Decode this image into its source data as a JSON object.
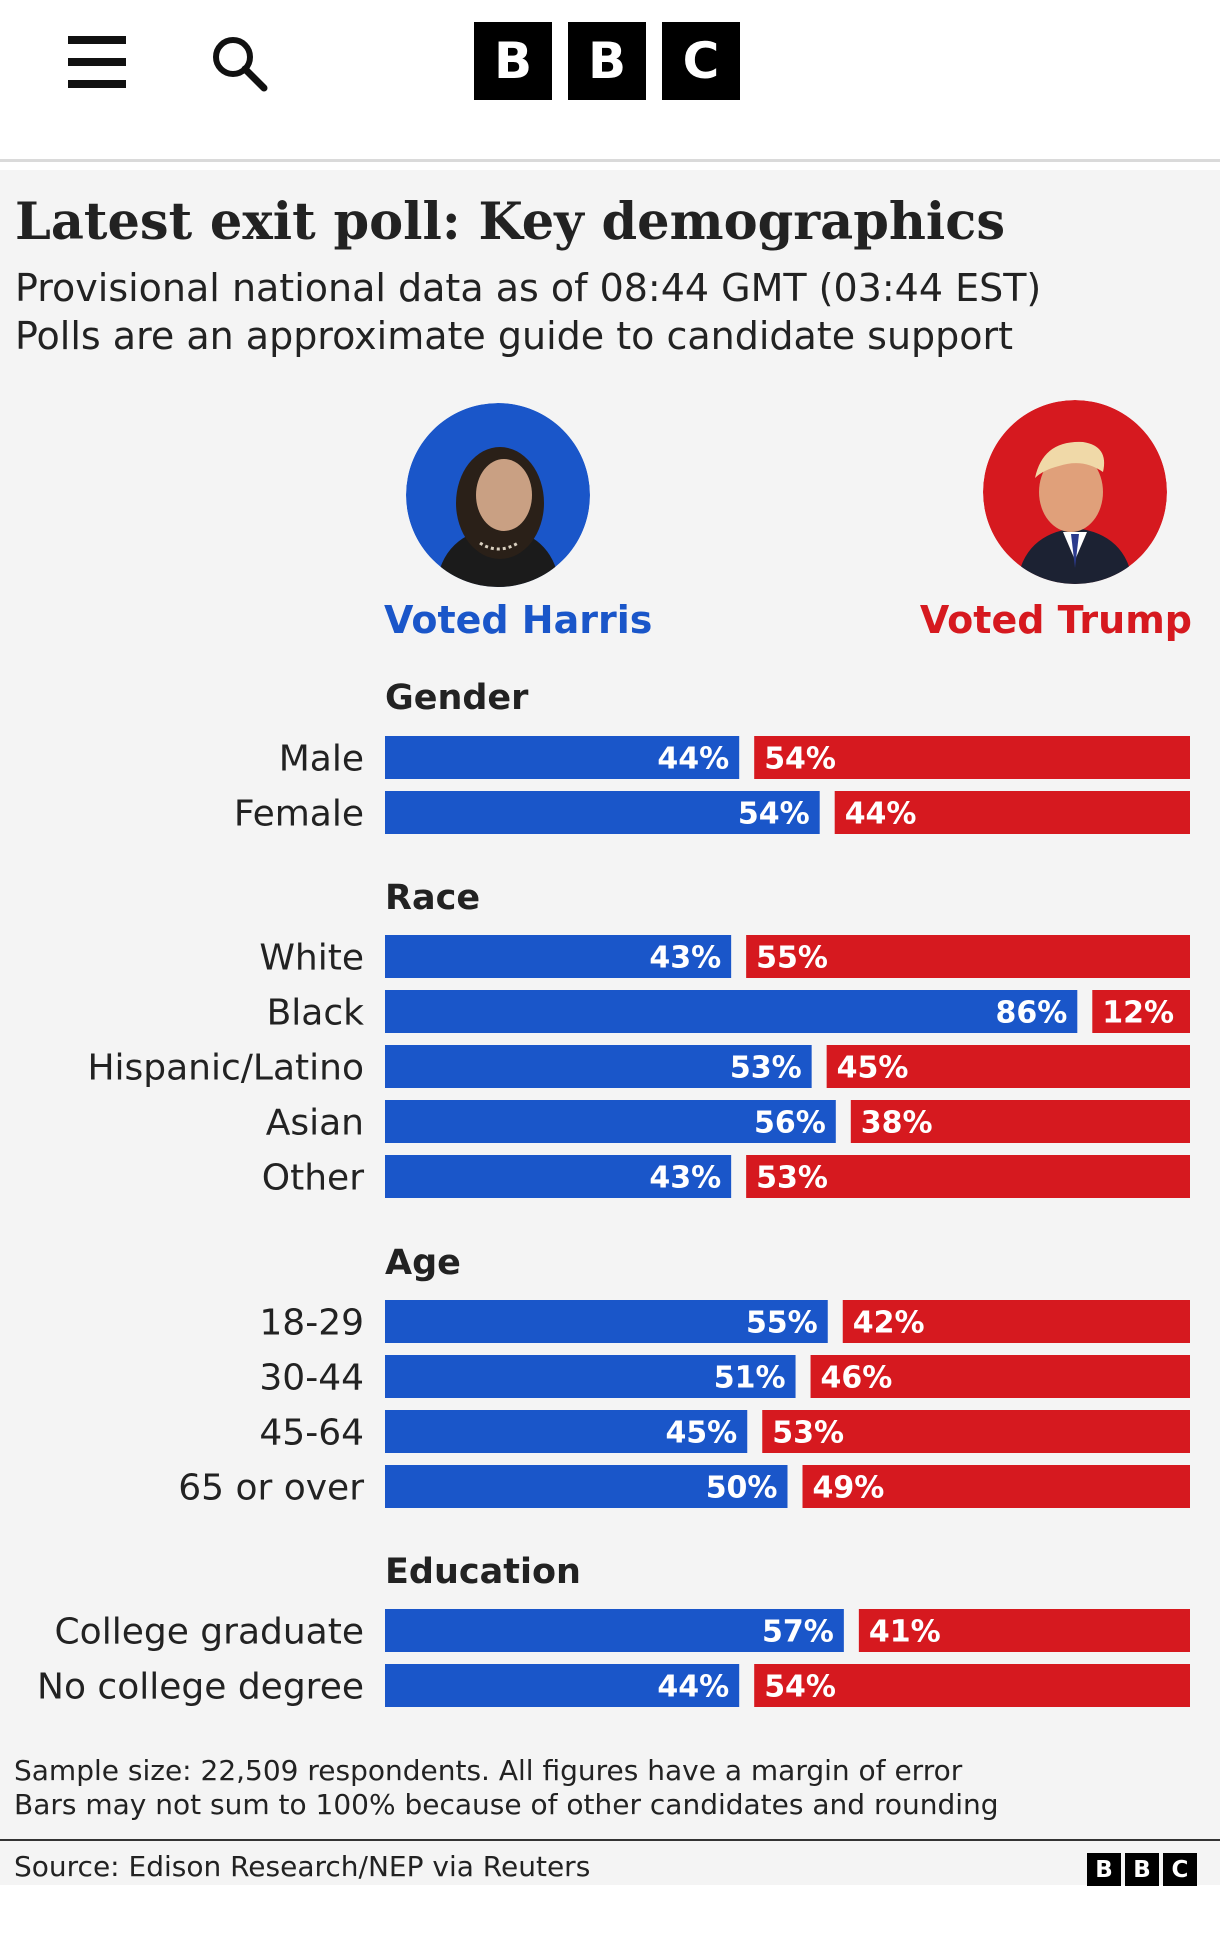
{
  "nav": {
    "menu_icon": "hamburger-menu-icon",
    "search_icon": "search-icon",
    "logo_letters": [
      "B",
      "B",
      "C"
    ]
  },
  "graphic": {
    "title": "Latest exit poll: Key demographics",
    "subtitle_line1": "Provisional national data as of 08:44 GMT (03:44 EST)",
    "subtitle_line2": "Polls are an approximate guide to candidate support",
    "harris_label": "Voted Harris",
    "trump_label": "Voted Trump",
    "colors": {
      "harris": "#1a56c9",
      "trump": "#d6191f",
      "panel_background": "#f4f4f4",
      "label_text": "#222222"
    },
    "footnote_line1": "Sample size: 22,509 respondents. All figures have a margin of error",
    "footnote_line2": "Bars may not sum to 100% because of other candidates and rounding",
    "source": "Source: Edison Research/NEP via Reuters",
    "footer_logo_letters": [
      "B",
      "B",
      "C"
    ]
  },
  "chart_data": {
    "type": "bar",
    "orientation": "horizontal-split",
    "series_names": [
      "Voted Harris",
      "Voted Trump"
    ],
    "unit": "%",
    "groups": [
      {
        "name": "Gender",
        "rows": [
          {
            "label": "Male",
            "harris": 44,
            "trump": 54
          },
          {
            "label": "Female",
            "harris": 54,
            "trump": 44
          }
        ]
      },
      {
        "name": "Race",
        "rows": [
          {
            "label": "White",
            "harris": 43,
            "trump": 55
          },
          {
            "label": "Black",
            "harris": 86,
            "trump": 12
          },
          {
            "label": "Hispanic/Latino",
            "harris": 53,
            "trump": 45
          },
          {
            "label": "Asian",
            "harris": 56,
            "trump": 38
          },
          {
            "label": "Other",
            "harris": 43,
            "trump": 53
          }
        ]
      },
      {
        "name": "Age",
        "rows": [
          {
            "label": "18-29",
            "harris": 55,
            "trump": 42
          },
          {
            "label": "30-44",
            "harris": 51,
            "trump": 46
          },
          {
            "label": "45-64",
            "harris": 45,
            "trump": 53
          },
          {
            "label": "65 or over",
            "harris": 50,
            "trump": 49
          }
        ]
      },
      {
        "name": "Education",
        "rows": [
          {
            "label": "College graduate",
            "harris": 57,
            "trump": 41
          },
          {
            "label": "No college degree",
            "harris": 44,
            "trump": 54
          }
        ]
      }
    ]
  }
}
